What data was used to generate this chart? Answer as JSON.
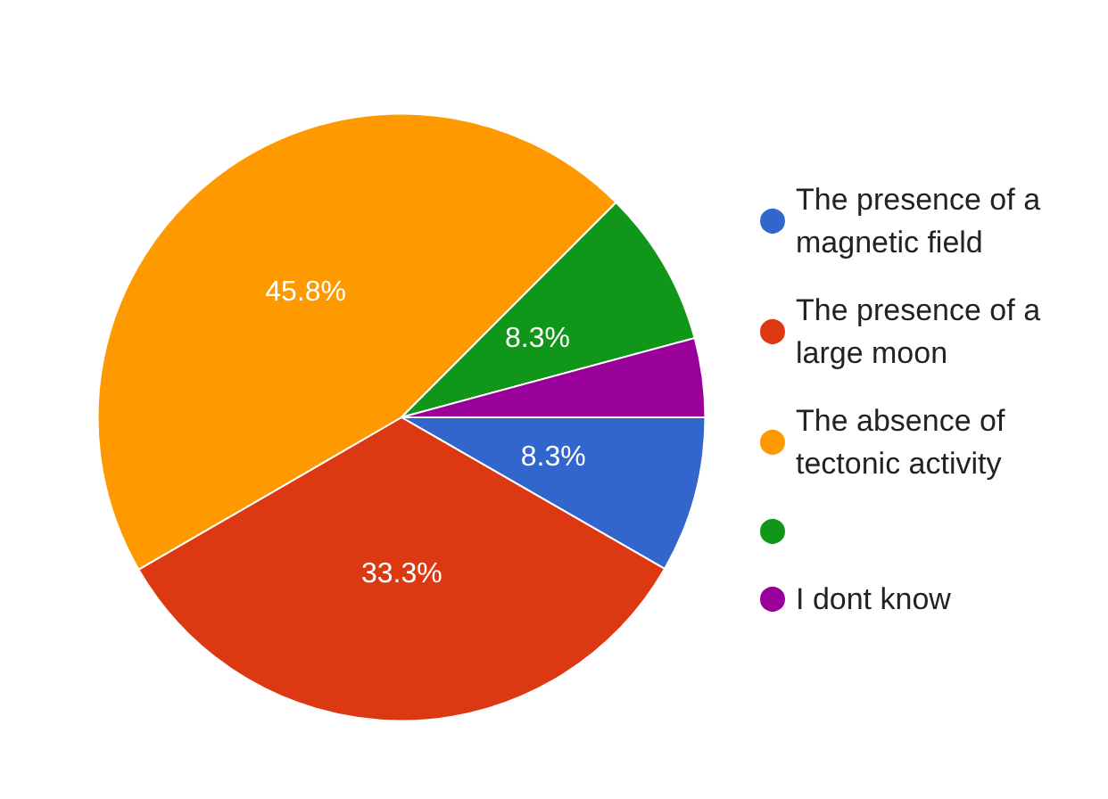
{
  "chart_data": {
    "type": "pie",
    "categories": [
      "The presence of a magnetic field",
      "The presence of a large moon",
      "The absence of tectonic activity",
      null,
      "I dont know"
    ],
    "values": [
      8.3,
      33.3,
      45.8,
      8.3,
      4.2
    ],
    "colors": [
      "#3366cc",
      "#dc3912",
      "#ff9900",
      "#109618",
      "#990099"
    ],
    "value_labels": [
      "8.3%",
      "33.3%",
      "45.8%",
      "8.3%",
      null
    ],
    "legend": "right"
  }
}
